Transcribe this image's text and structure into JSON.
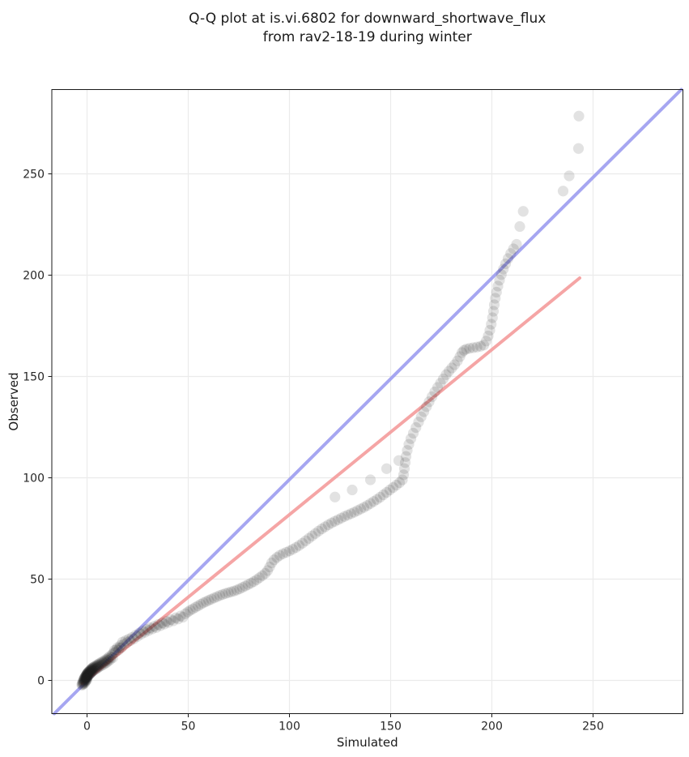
{
  "chart_data": {
    "type": "scatter",
    "title_line1": "Q-Q plot at is.vi.6802 for downward_shortwave_flux",
    "title_line2": "from rav2-18-19 during winter",
    "xlabel": "Simulated",
    "ylabel": "Observed",
    "xlim": [
      -17.4,
      294.4
    ],
    "ylim": [
      -16.4,
      291.6
    ],
    "xticks": [
      0,
      50,
      100,
      150,
      200,
      250
    ],
    "yticks": [
      0,
      50,
      100,
      150,
      200,
      250
    ],
    "grid": true,
    "grid_color": "#ebebeb",
    "background_color": "#ffffff",
    "spine_color": "#1a1a1a",
    "identity_line": {
      "x1": -16.2,
      "y1": -16.4,
      "x2": 293.6,
      "y2": 291.6,
      "color": "#9d9df0",
      "width": 4
    },
    "fit_line": {
      "x1": -2.3,
      "y1": -1.5,
      "x2": 243.4,
      "y2": 198.6,
      "color": "#f49c9c",
      "width": 4
    },
    "marker": {
      "radius": 6.6,
      "color": "#1f1f1f",
      "opacity": 0.13
    },
    "points": [
      [
        -2.6,
        -2.1
      ],
      [
        -2.4,
        -1.4
      ],
      [
        -2.3,
        -2.3
      ],
      [
        -2.1,
        -0.9
      ],
      [
        -2.0,
        -1.8
      ],
      [
        -1.9,
        -0.3
      ],
      [
        -1.8,
        -1.2
      ],
      [
        -1.7,
        0.2
      ],
      [
        -1.6,
        -0.7
      ],
      [
        -1.5,
        0.6
      ],
      [
        -1.45,
        -1.6
      ],
      [
        -1.4,
        1.0
      ],
      [
        -1.3,
        -0.2
      ],
      [
        -1.2,
        1.3
      ],
      [
        -1.1,
        0.3
      ],
      [
        -1.0,
        1.6
      ],
      [
        -0.95,
        -1.0
      ],
      [
        -0.9,
        0.8
      ],
      [
        -0.8,
        1.9
      ],
      [
        -0.75,
        -0.4
      ],
      [
        -0.7,
        1.1
      ],
      [
        -0.6,
        2.2
      ],
      [
        -0.55,
        0.1
      ],
      [
        -0.5,
        1.4
      ],
      [
        -0.45,
        2.5
      ],
      [
        -0.4,
        0.5
      ],
      [
        -0.35,
        1.7
      ],
      [
        -0.3,
        2.8
      ],
      [
        -0.25,
        0.9
      ],
      [
        -0.2,
        2.0
      ],
      [
        -0.15,
        3.0
      ],
      [
        -0.1,
        1.2
      ],
      [
        -0.05,
        2.3
      ],
      [
        0.0,
        0.2
      ],
      [
        0.0,
        3.2
      ],
      [
        0.05,
        1.5
      ],
      [
        0.1,
        2.6
      ],
      [
        0.15,
        3.5
      ],
      [
        0.2,
        1.8
      ],
      [
        0.3,
        2.9
      ],
      [
        0.35,
        3.8
      ],
      [
        0.4,
        2.1
      ],
      [
        0.5,
        3.2
      ],
      [
        0.55,
        4.0
      ],
      [
        0.6,
        2.4
      ],
      [
        0.7,
        3.5
      ],
      [
        0.8,
        4.3
      ],
      [
        0.9,
        2.7
      ],
      [
        1.0,
        3.8
      ],
      [
        1.1,
        4.6
      ],
      [
        1.2,
        3.0
      ],
      [
        1.3,
        4.1
      ],
      [
        1.4,
        4.9
      ],
      [
        1.5,
        3.3
      ],
      [
        1.6,
        4.4
      ],
      [
        1.7,
        5.2
      ],
      [
        1.8,
        3.6
      ],
      [
        1.9,
        4.7
      ],
      [
        2.0,
        5.5
      ],
      [
        2.1,
        3.9
      ],
      [
        2.2,
        5.0
      ],
      [
        2.3,
        5.8
      ],
      [
        2.4,
        4.2
      ],
      [
        2.5,
        5.3
      ],
      [
        2.6,
        6.1
      ],
      [
        2.7,
        4.5
      ],
      [
        2.8,
        5.6
      ],
      [
        2.9,
        6.4
      ],
      [
        3.0,
        4.8
      ],
      [
        3.2,
        5.9
      ],
      [
        3.4,
        6.7
      ],
      [
        3.6,
        5.1
      ],
      [
        3.8,
        6.2
      ],
      [
        4.0,
        7.0
      ],
      [
        4.2,
        5.5
      ],
      [
        4.4,
        6.6
      ],
      [
        4.6,
        7.4
      ],
      [
        4.8,
        5.9
      ],
      [
        5.0,
        7.0
      ],
      [
        5.2,
        7.8
      ],
      [
        5.4,
        6.3
      ],
      [
        5.6,
        7.4
      ],
      [
        5.8,
        8.2
      ],
      [
        6.0,
        6.7
      ],
      [
        6.3,
        7.8
      ],
      [
        6.6,
        8.7
      ],
      [
        6.9,
        7.2
      ],
      [
        7.2,
        8.3
      ],
      [
        7.5,
        9.2
      ],
      [
        7.8,
        7.7
      ],
      [
        8.1,
        8.8
      ],
      [
        8.4,
        9.7
      ],
      [
        8.7,
        8.2
      ],
      [
        9.0,
        9.4
      ],
      [
        9.3,
        10.3
      ],
      [
        9.6,
        8.8
      ],
      [
        9.9,
        10.0
      ],
      [
        10.2,
        11.0
      ],
      [
        10.5,
        9.5
      ],
      [
        10.8,
        10.7
      ],
      [
        11.1,
        11.8
      ],
      [
        11.5,
        10.3
      ],
      [
        11.9,
        11.5
      ],
      [
        12.3,
        12.7
      ],
      [
        12.7,
        11.2
      ],
      [
        13.1,
        13.5
      ],
      [
        13.5,
        14.8
      ],
      [
        14.0,
        13.9
      ],
      [
        14.5,
        15.2
      ],
      [
        15.0,
        16.2
      ],
      [
        15.5,
        14.9
      ],
      [
        16.0,
        16.1
      ],
      [
        16.5,
        17.2
      ],
      [
        17.0,
        16.2
      ],
      [
        17.5,
        18.9
      ],
      [
        18.2,
        17.8
      ],
      [
        19.0,
        19.6
      ],
      [
        19.8,
        18.7
      ],
      [
        20.6,
        20.4
      ],
      [
        21.4,
        19.6
      ],
      [
        22.2,
        21.2
      ],
      [
        23.1,
        20.5
      ],
      [
        24.0,
        22.3
      ],
      [
        24.9,
        21.7
      ],
      [
        25.8,
        23.4
      ],
      [
        26.7,
        22.8
      ],
      [
        27.6,
        24.3
      ],
      [
        28.5,
        23.7
      ],
      [
        29.4,
        25.2
      ],
      [
        30.3,
        24.6
      ],
      [
        31.2,
        26.0
      ],
      [
        32.2,
        25.4
      ],
      [
        33.2,
        26.7
      ],
      [
        34.2,
        26.1
      ],
      [
        35.2,
        27.6
      ],
      [
        36.2,
        27.0
      ],
      [
        37.2,
        28.4
      ],
      [
        38.2,
        27.8
      ],
      [
        39.2,
        29.2
      ],
      [
        40.2,
        28.6
      ],
      [
        41.4,
        30.0
      ],
      [
        42.6,
        29.4
      ],
      [
        43.8,
        30.9
      ],
      [
        45.0,
        30.3
      ],
      [
        46.2,
        31.8
      ],
      [
        47.4,
        31.2
      ],
      [
        48.6,
        32.9
      ],
      [
        49.8,
        33.8
      ],
      [
        51.0,
        34.6
      ],
      [
        52.3,
        35.3
      ],
      [
        53.6,
        36.1
      ],
      [
        54.9,
        36.8
      ],
      [
        56.2,
        37.6
      ],
      [
        57.5,
        38.3
      ],
      [
        58.8,
        38.9
      ],
      [
        60.1,
        39.5
      ],
      [
        61.4,
        40.1
      ],
      [
        62.8,
        40.7
      ],
      [
        64.2,
        41.3
      ],
      [
        65.6,
        41.9
      ],
      [
        67.0,
        42.4
      ],
      [
        68.4,
        42.9
      ],
      [
        69.8,
        43.3
      ],
      [
        71.2,
        43.7
      ],
      [
        72.6,
        44.1
      ],
      [
        74.0,
        44.6
      ],
      [
        75.4,
        45.2
      ],
      [
        76.8,
        45.9
      ],
      [
        78.2,
        46.6
      ],
      [
        79.6,
        47.3
      ],
      [
        81.0,
        48.0
      ],
      [
        82.4,
        48.8
      ],
      [
        83.8,
        49.7
      ],
      [
        85.2,
        50.7
      ],
      [
        86.6,
        51.7
      ],
      [
        88.0,
        52.8
      ],
      [
        89.2,
        54.2
      ],
      [
        90.2,
        56.0
      ],
      [
        91.2,
        58.0
      ],
      [
        92.4,
        59.5
      ],
      [
        93.8,
        60.7
      ],
      [
        95.2,
        61.7
      ],
      [
        96.8,
        62.5
      ],
      [
        98.4,
        63.2
      ],
      [
        100.0,
        63.9
      ],
      [
        101.6,
        64.7
      ],
      [
        103.2,
        65.6
      ],
      [
        104.8,
        66.6
      ],
      [
        106.4,
        67.7
      ],
      [
        108.0,
        68.9
      ],
      [
        109.6,
        70.1
      ],
      [
        111.2,
        71.3
      ],
      [
        112.8,
        72.5
      ],
      [
        114.4,
        73.7
      ],
      [
        116.0,
        74.8
      ],
      [
        117.6,
        75.8
      ],
      [
        119.2,
        76.8
      ],
      [
        120.8,
        77.7
      ],
      [
        122.4,
        78.5
      ],
      [
        124.0,
        79.3
      ],
      [
        125.6,
        80.1
      ],
      [
        127.2,
        80.9
      ],
      [
        128.8,
        81.6
      ],
      [
        130.4,
        82.3
      ],
      [
        132.0,
        83.0
      ],
      [
        133.6,
        83.8
      ],
      [
        135.2,
        84.6
      ],
      [
        136.8,
        85.4
      ],
      [
        138.4,
        86.3
      ],
      [
        140.0,
        87.3
      ],
      [
        141.6,
        88.3
      ],
      [
        143.2,
        89.3
      ],
      [
        144.8,
        90.4
      ],
      [
        146.4,
        91.6
      ],
      [
        148.0,
        92.8
      ],
      [
        149.6,
        94.0
      ],
      [
        151.2,
        95.2
      ],
      [
        152.8,
        96.4
      ],
      [
        154.4,
        97.6
      ],
      [
        155.8,
        99.0
      ],
      [
        156.4,
        101.5
      ],
      [
        156.8,
        104.5
      ],
      [
        157.2,
        107.5
      ],
      [
        157.6,
        110.5
      ],
      [
        158.2,
        113.5
      ],
      [
        159.0,
        116.5
      ],
      [
        160.0,
        119.3
      ],
      [
        161.2,
        122.0
      ],
      [
        162.5,
        124.8
      ],
      [
        163.8,
        127.5
      ],
      [
        165.1,
        130.1
      ],
      [
        166.4,
        132.6
      ],
      [
        167.7,
        135.1
      ],
      [
        169.0,
        137.5
      ],
      [
        170.4,
        140.0
      ],
      [
        171.8,
        142.4
      ],
      [
        173.2,
        144.6
      ],
      [
        174.6,
        146.7
      ],
      [
        176.0,
        148.8
      ],
      [
        177.4,
        150.9
      ],
      [
        178.8,
        152.6
      ],
      [
        180.2,
        154.2
      ],
      [
        181.6,
        155.8
      ],
      [
        183.0,
        157.7
      ],
      [
        184.2,
        159.8
      ],
      [
        185.2,
        161.8
      ],
      [
        186.2,
        162.9
      ],
      [
        187.4,
        163.5
      ],
      [
        189.0,
        163.9
      ],
      [
        190.8,
        164.2
      ],
      [
        192.6,
        164.5
      ],
      [
        194.4,
        164.9
      ],
      [
        196.0,
        165.5
      ],
      [
        197.2,
        167.5
      ],
      [
        198.2,
        170.0
      ],
      [
        199.0,
        172.8
      ],
      [
        199.7,
        175.8
      ],
      [
        200.3,
        179.0
      ],
      [
        200.8,
        182.2
      ],
      [
        201.2,
        185.4
      ],
      [
        201.7,
        188.6
      ],
      [
        202.3,
        191.6
      ],
      [
        203.0,
        194.6
      ],
      [
        203.8,
        197.5
      ],
      [
        204.7,
        200.3
      ],
      [
        205.7,
        203.0
      ],
      [
        206.8,
        205.6
      ],
      [
        208.0,
        208.2
      ],
      [
        209.3,
        210.7
      ],
      [
        210.7,
        213.0
      ],
      [
        212.2,
        215.2
      ],
      [
        213.8,
        224.0
      ],
      [
        215.5,
        231.5
      ],
      [
        122.5,
        90.5
      ],
      [
        131.0,
        94.0
      ],
      [
        140.0,
        99.0
      ],
      [
        148.0,
        104.5
      ],
      [
        154.0,
        108.5
      ],
      [
        235.2,
        241.5
      ],
      [
        238.2,
        249.0
      ],
      [
        242.8,
        262.5
      ],
      [
        243.0,
        278.5
      ]
    ]
  }
}
